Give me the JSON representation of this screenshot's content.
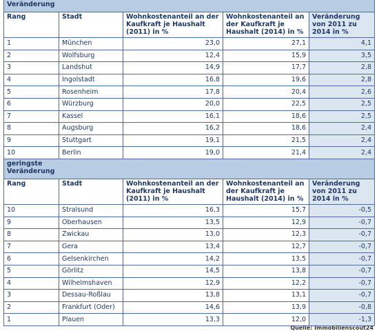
{
  "sections": [
    {
      "title": "höchste Veränderung",
      "header": [
        "Rang",
        "Stadt",
        "Wohnkostenanteil an der Kaufkraft je Haushalt (2011) in %",
        "Wohnkostenanteil an der Kaufkraft je Haushalt (2014) in %",
        "Veränderung von 2011 zu 2014 in %"
      ],
      "rows": [
        [
          "1",
          "München",
          "23,0",
          "27,1",
          "4,1"
        ],
        [
          "2",
          "Wolfsburg",
          "12,4",
          "15,9",
          "3,5"
        ],
        [
          "3",
          "Landshut",
          "14,9",
          "17,7",
          "2,8"
        ],
        [
          "4",
          "Ingolstadt",
          "16,8",
          "19,6",
          "2,8"
        ],
        [
          "5",
          "Rosenheim",
          "17,8",
          "20,4",
          "2,6"
        ],
        [
          "6",
          "Würzburg",
          "20,0",
          "22,5",
          "2,5"
        ],
        [
          "7",
          "Kassel",
          "16,1",
          "18,6",
          "2,5"
        ],
        [
          "8",
          "Augsburg",
          "16,2",
          "18,6",
          "2,4"
        ],
        [
          "9",
          "Stuttgart",
          "19,1",
          "21,5",
          "2,4"
        ],
        [
          "10",
          "Berlin",
          "19,0",
          "21,4",
          "2,4"
        ]
      ]
    },
    {
      "title": "geringste Veränderung",
      "header": [
        "Rang",
        "Stadt",
        "Wohnkostenanteil an der Kaufkraft je Haushalt (2011) in %",
        "Wohnkostenanteil an der Kaufkraft je Haushalt (2014) in %",
        "Veränderung von 2011 zu 2014 in %"
      ],
      "rows": [
        [
          "10",
          "Stralsund",
          "16,3",
          "15,7",
          "-0,5"
        ],
        [
          "9",
          "Oberhausen",
          "13,5",
          "12,9",
          "-0,7"
        ],
        [
          "8",
          "Zwickau",
          "13,0",
          "12,3",
          "-0,7"
        ],
        [
          "7",
          "Gera",
          "13,4",
          "12,7",
          "-0,7"
        ],
        [
          "6",
          "Gelsenkirchen",
          "14,2",
          "13,5",
          "-0,7"
        ],
        [
          "5",
          "Görlitz",
          "14,5",
          "13,8",
          "-0,7"
        ],
        [
          "4",
          "Wilhelmshaven",
          "12,9",
          "12,2",
          "-0,7"
        ],
        [
          "3",
          "Dessau-Roßlau",
          "13,8",
          "13,1",
          "-0,7"
        ],
        [
          "2",
          "Frankfurt (Oder)",
          "14,6",
          "13,9",
          "-0,8"
        ],
        [
          "1",
          "Plauen",
          "13,3",
          "12,0",
          "-1,3"
        ]
      ]
    }
  ],
  "source": "Quelle: Immobilienscout24"
}
